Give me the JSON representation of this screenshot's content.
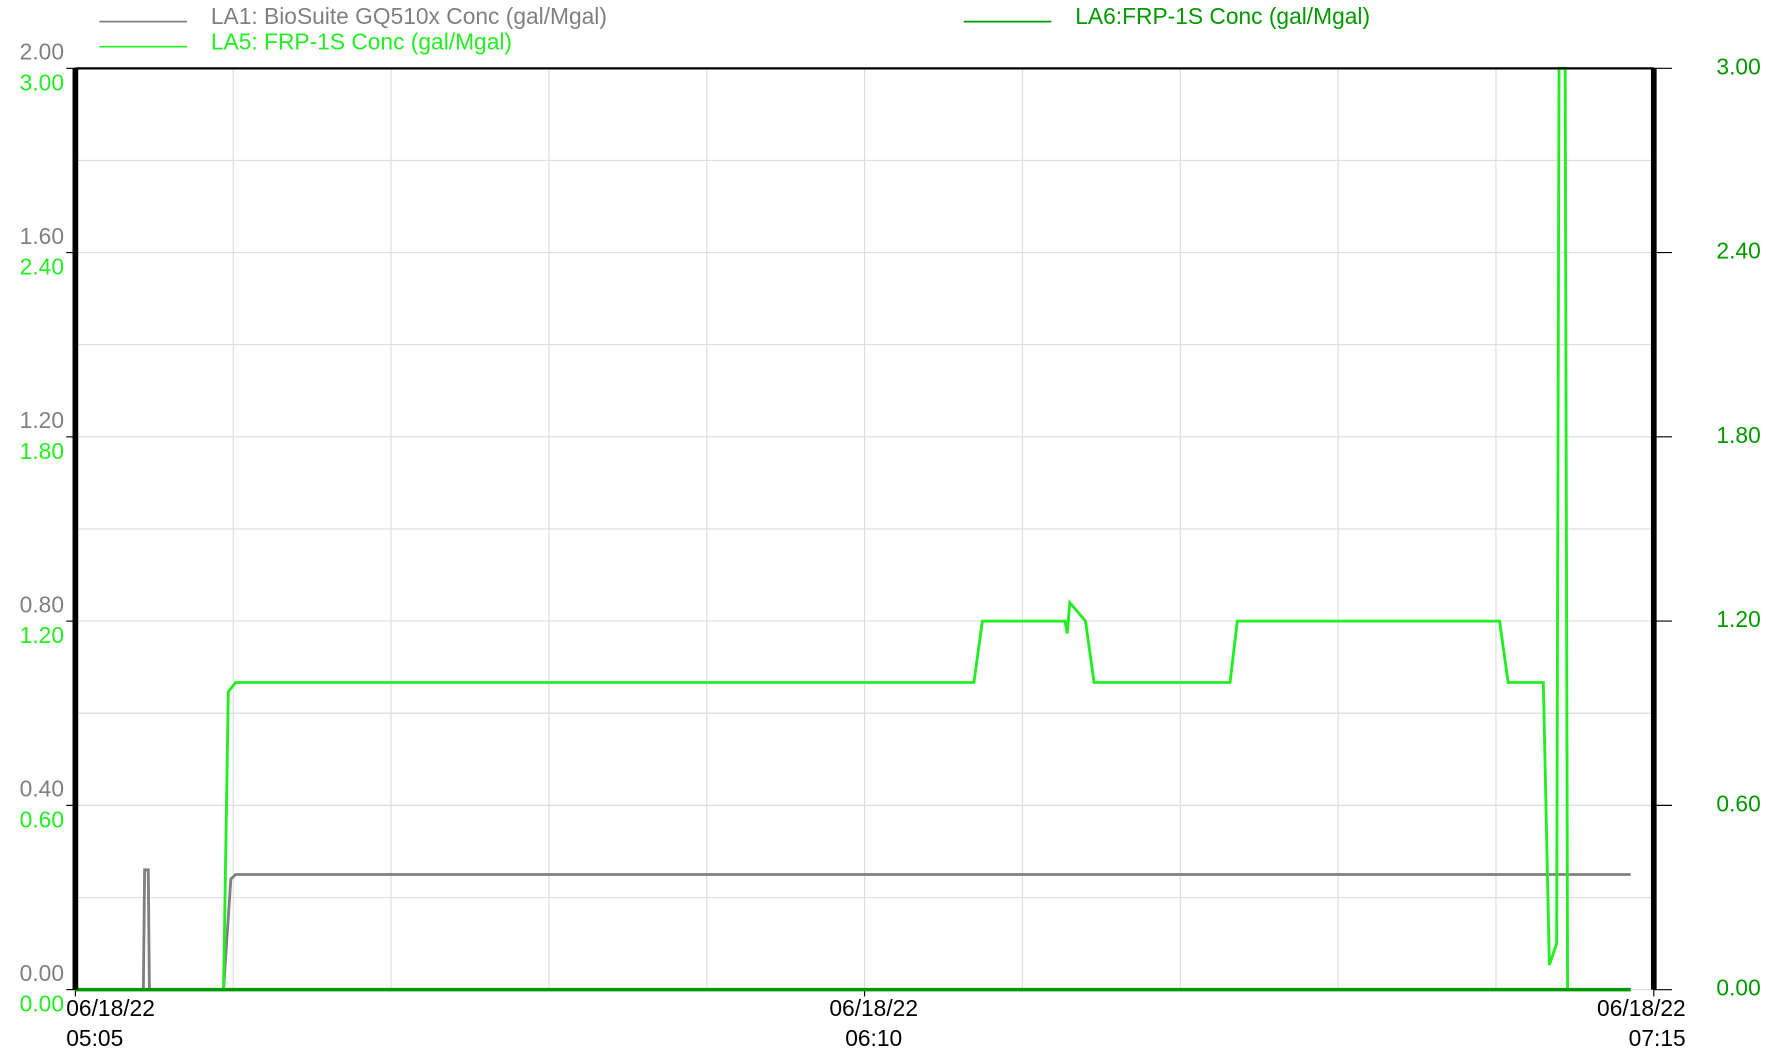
{
  "chart_data": {
    "type": "line",
    "xlim": [
      0,
      130
    ],
    "xticks": [
      {
        "value": 0,
        "label": [
          "06/18/22",
          "05:05"
        ]
      },
      {
        "value": 65,
        "label": [
          "06/18/22",
          "06:10"
        ]
      },
      {
        "value": 130,
        "label": [
          "06/18/22",
          "07:15"
        ]
      }
    ],
    "xgrid": [
      0,
      13,
      26,
      39,
      52,
      65,
      78,
      91,
      104,
      117,
      130
    ],
    "ylim": [
      0,
      2
    ],
    "yticks": [
      {
        "value": 0,
        "label": "0.00"
      },
      {
        "value": 0.4,
        "label": "0.40"
      },
      {
        "value": 0.8,
        "label": "0.80"
      },
      {
        "value": 1.2,
        "label": "1.20"
      },
      {
        "value": 1.6,
        "label": "1.60"
      },
      {
        "value": 2,
        "label": "2.00"
      }
    ],
    "ygrid": [
      0,
      0.2,
      0.4,
      0.6,
      0.8,
      1,
      1.2,
      1.4,
      1.6,
      1.8,
      2
    ],
    "y3lim": [
      0,
      3
    ],
    "y3ticks": [
      {
        "value": 0,
        "label": "0.00"
      },
      {
        "value": 0.6,
        "label": "0.60"
      },
      {
        "value": 1.2,
        "label": "1.20"
      },
      {
        "value": 1.8,
        "label": "1.80"
      },
      {
        "value": 2.4,
        "label": "2.40"
      },
      {
        "value": 3,
        "label": "3.00"
      }
    ],
    "y2lim": [
      0,
      3
    ],
    "y2ticks": [
      {
        "value": 0,
        "label": "0.00"
      },
      {
        "value": 0.6,
        "label": "0.60"
      },
      {
        "value": 1.2,
        "label": "1.20"
      },
      {
        "value": 1.8,
        "label": "1.80"
      },
      {
        "value": 2.4,
        "label": "2.40"
      },
      {
        "value": 3,
        "label": "3.00"
      }
    ],
    "grid": true,
    "series": [
      {
        "name": "LA1: BioSuite GQ510x Conc (gal/Mgal)",
        "color": "#808080",
        "axis": "y",
        "x": [
          0,
          5.6,
          5.7,
          6.0,
          6.1,
          12.2,
          12.8,
          13.2,
          128.1
        ],
        "values": [
          0,
          0,
          0.26,
          0.26,
          0,
          0,
          0.24,
          0.25,
          0.25
        ]
      },
      {
        "name": "LA5: FRP-1S Conc (gal/Mgal)",
        "color": "#22ee22",
        "axis": "y3",
        "x": [
          0,
          12.2,
          12.6,
          13.2,
          74.0,
          74.7,
          81.5,
          81.7,
          81.9,
          83.2,
          83.9,
          95.1,
          95.7,
          117.3,
          118.0,
          120.9,
          121.4,
          122.0,
          122.2,
          122.7,
          122.9,
          128.1
        ],
        "values": [
          0,
          0,
          0.97,
          1.0,
          1.0,
          1.2,
          1.2,
          1.16,
          1.26,
          1.2,
          1.0,
          1.0,
          1.2,
          1.2,
          1.0,
          1.0,
          0.08,
          0.15,
          3.0,
          3.0,
          0,
          0
        ]
      },
      {
        "name": "LA6:FRP-1S Conc (gal/Mgal)",
        "color": "#009900",
        "axis": "y2",
        "x": [
          0,
          128.1
        ],
        "values": [
          0,
          0
        ]
      }
    ]
  }
}
